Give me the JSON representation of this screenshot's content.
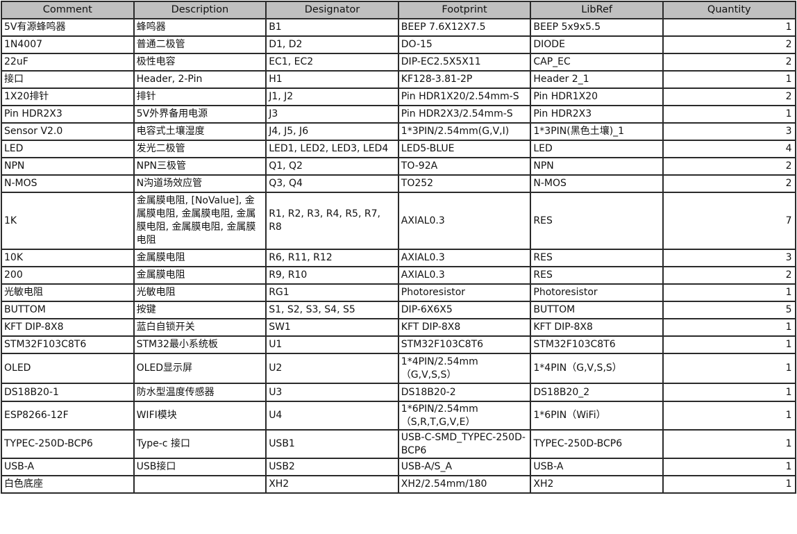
{
  "headers": [
    "Comment",
    "Description",
    "Designator",
    "Footprint",
    "LibRef",
    "Quantity"
  ],
  "rows": [
    {
      "comment": "5V有源蜂鸣器",
      "description": "蜂鸣器",
      "designator": "B1",
      "footprint": "BEEP 7.6X12X7.5",
      "libref": "BEEP 5x9x5.5",
      "quantity": "1"
    },
    {
      "comment": "1N4007",
      "description": "普通二极管",
      "designator": "D1, D2",
      "footprint": "DO-15",
      "libref": "DIODE",
      "quantity": "2"
    },
    {
      "comment": "22uF",
      "description": "极性电容",
      "designator": "EC1, EC2",
      "footprint": "DIP-EC2.5X5X11",
      "libref": "CAP_EC",
      "quantity": "2"
    },
    {
      "comment": "接口",
      "description": "Header, 2-Pin",
      "designator": "H1",
      "footprint": "KF128-3.81-2P",
      "libref": "Header 2_1",
      "quantity": "1"
    },
    {
      "comment": "1X20排针",
      "description": "排针",
      "designator": "J1, J2",
      "footprint": "Pin HDR1X20/2.54mm-S",
      "libref": "Pin HDR1X20",
      "quantity": "2"
    },
    {
      "comment": "Pin HDR2X3",
      "description": "5V外界备用电源",
      "designator": "J3",
      "footprint": "Pin HDR2X3/2.54mm-S",
      "libref": "Pin HDR2X3",
      "quantity": "1"
    },
    {
      "comment": "Sensor V2.0",
      "description": "电容式土壤湿度",
      "designator": "J4, J5, J6",
      "footprint": "1*3PIN/2.54mm(G,V,I)",
      "libref": "1*3PIN(黑色土壤)_1",
      "quantity": "3"
    },
    {
      "comment": "LED",
      "description": "发光二极管",
      "designator": "LED1, LED2, LED3, LED4",
      "footprint": "LED5-BLUE",
      "libref": "LED",
      "quantity": "4"
    },
    {
      "comment": "NPN",
      "description": "NPN三极管",
      "designator": "Q1, Q2",
      "footprint": "TO-92A",
      "libref": "NPN",
      "quantity": "2"
    },
    {
      "comment": "N-MOS",
      "description": "N沟道场效应管",
      "designator": "Q3, Q4",
      "footprint": "TO252",
      "libref": "N-MOS",
      "quantity": "2"
    },
    {
      "comment": "1K",
      "description": "金属膜电阻, [NoValue], 金属膜电阻, 金属膜电阻, 金属膜电阻, 金属膜电阻, 金属膜电阻",
      "designator": "R1, R2, R3, R4, R5, R7, R8",
      "footprint": "AXIAL0.3",
      "libref": "RES",
      "quantity": "7"
    },
    {
      "comment": "10K",
      "description": "金属膜电阻",
      "designator": "R6, R11, R12",
      "footprint": "AXIAL0.3",
      "libref": "RES",
      "quantity": "3"
    },
    {
      "comment": "200",
      "description": "金属膜电阻",
      "designator": "R9, R10",
      "footprint": "AXIAL0.3",
      "libref": "RES",
      "quantity": "2"
    },
    {
      "comment": "光敏电阻",
      "description": "光敏电阻",
      "designator": "RG1",
      "footprint": "Photoresistor",
      "libref": "Photoresistor",
      "quantity": "1"
    },
    {
      "comment": "BUTTOM",
      "description": "按键",
      "designator": "S1, S2, S3, S4, S5",
      "footprint": "DIP-6X6X5",
      "libref": "BUTTOM",
      "quantity": "5"
    },
    {
      "comment": "KFT DIP-8X8",
      "description": "蓝白自锁开关",
      "designator": "SW1",
      "footprint": "KFT DIP-8X8",
      "libref": "KFT DIP-8X8",
      "quantity": "1"
    },
    {
      "comment": "STM32F103C8T6",
      "description": "STM32最小系统板",
      "designator": "U1",
      "footprint": "STM32F103C8T6",
      "libref": "STM32F103C8T6",
      "quantity": "1"
    },
    {
      "comment": "OLED",
      "description": "OLED显示屏",
      "designator": "U2",
      "footprint": "1*4PIN/2.54mm （G,V,S,S）",
      "libref": "1*4PIN（G,V,S,S）",
      "quantity": "1"
    },
    {
      "comment": "DS18B20-1",
      "description": "防水型温度传感器",
      "designator": "U3",
      "footprint": "DS18B20-2",
      "libref": "DS18B20_2",
      "quantity": "1"
    },
    {
      "comment": "ESP8266-12F",
      "description": "WIFI模块",
      "designator": "U4",
      "footprint": "1*6PIN/2.54mm （S,R,T,G,V,E）",
      "libref": "1*6PIN（WiFi）",
      "quantity": "1"
    },
    {
      "comment": "TYPEC-250D-BCP6",
      "description": "Type-c 接口",
      "designator": "USB1",
      "footprint": "USB-C-SMD_TYPEC-250D-BCP6",
      "libref": "TYPEC-250D-BCP6",
      "quantity": "1"
    },
    {
      "comment": "USB-A",
      "description": "USB接口",
      "designator": "USB2",
      "footprint": "USB-A/S_A",
      "libref": "USB-A",
      "quantity": "1"
    },
    {
      "comment": "白色底座",
      "description": "",
      "designator": "XH2",
      "footprint": "XH2/2.54mm/180",
      "libref": "XH2",
      "quantity": "1"
    }
  ]
}
